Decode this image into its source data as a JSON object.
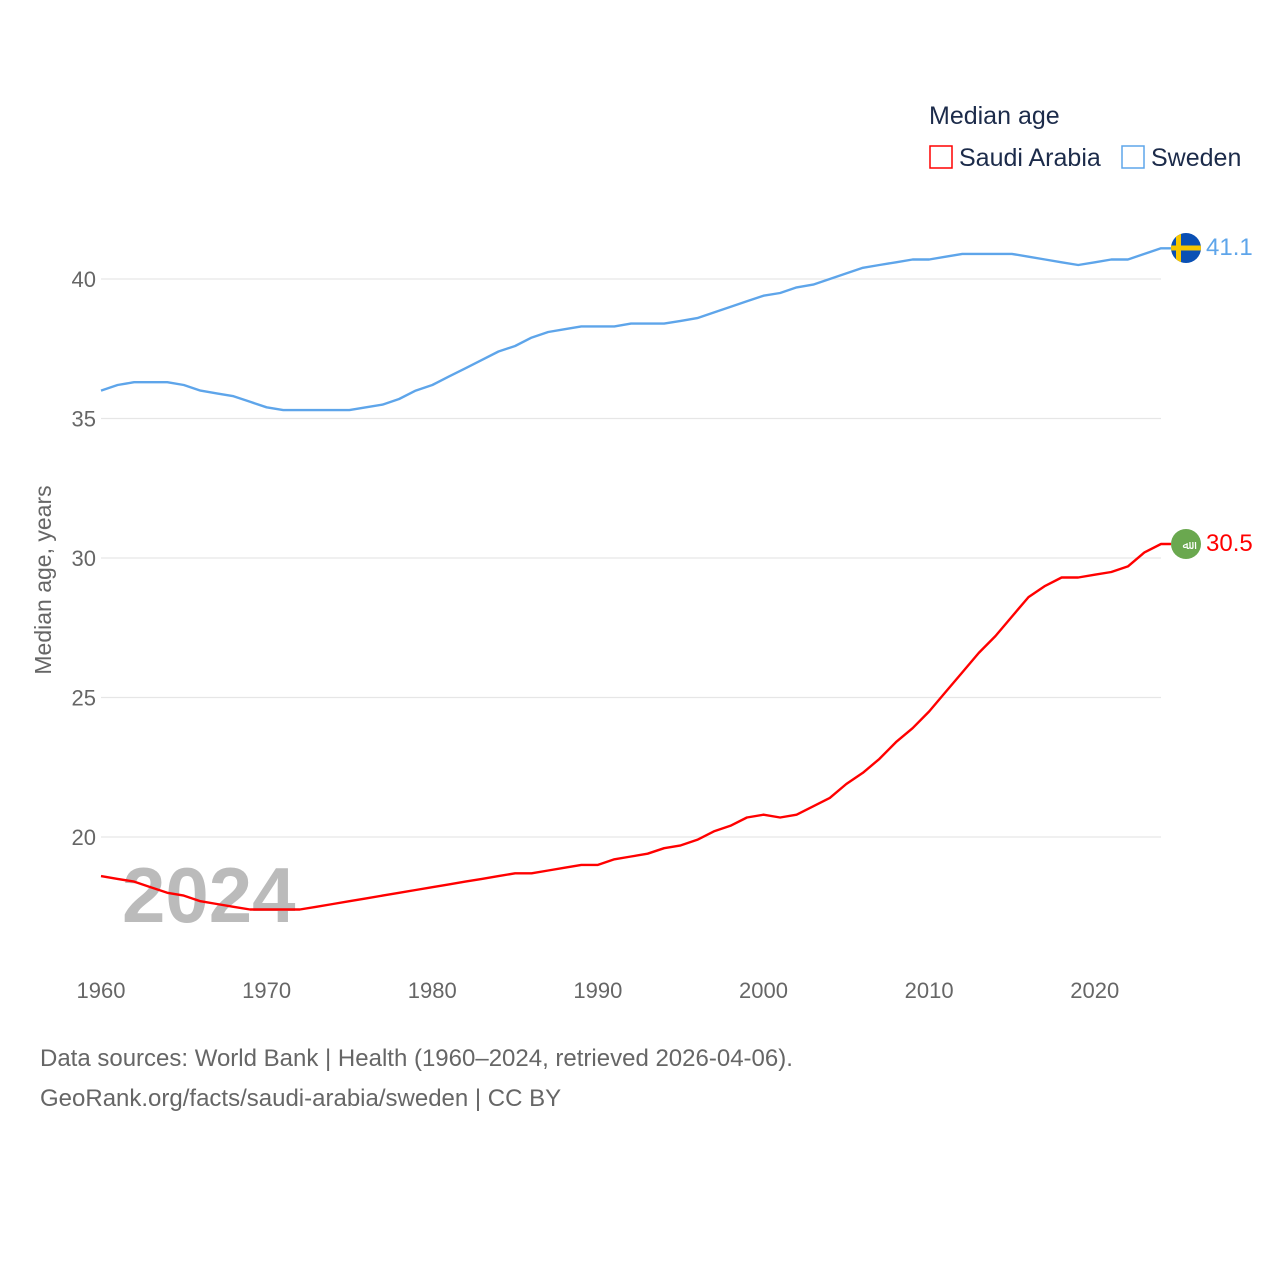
{
  "chart_data": {
    "type": "line",
    "title": "",
    "xlabel": "",
    "ylabel": "Median age, years",
    "legend_title": "Median age",
    "legend_position": "top-right",
    "year_watermark": "2024",
    "xlim": [
      1960,
      2024
    ],
    "ylim": [
      16,
      42
    ],
    "x_ticks": [
      1960,
      1970,
      1980,
      1990,
      2000,
      2010,
      2020
    ],
    "y_ticks": [
      20,
      25,
      30,
      35,
      40
    ],
    "grid": true,
    "x": [
      1960,
      1961,
      1962,
      1963,
      1964,
      1965,
      1966,
      1967,
      1968,
      1969,
      1970,
      1971,
      1972,
      1973,
      1974,
      1975,
      1976,
      1977,
      1978,
      1979,
      1980,
      1981,
      1982,
      1983,
      1984,
      1985,
      1986,
      1987,
      1988,
      1989,
      1990,
      1991,
      1992,
      1993,
      1994,
      1995,
      1996,
      1997,
      1998,
      1999,
      2000,
      2001,
      2002,
      2003,
      2004,
      2005,
      2006,
      2007,
      2008,
      2009,
      2010,
      2011,
      2012,
      2013,
      2014,
      2015,
      2016,
      2017,
      2018,
      2019,
      2020,
      2021,
      2022,
      2023,
      2024
    ],
    "series": [
      {
        "name": "Saudi Arabia",
        "color": "#ff0000",
        "end_label": "30.5",
        "values": [
          18.6,
          18.5,
          18.4,
          18.2,
          18.0,
          17.9,
          17.7,
          17.6,
          17.5,
          17.4,
          17.4,
          17.4,
          17.4,
          17.5,
          17.6,
          17.7,
          17.8,
          17.9,
          18.0,
          18.1,
          18.2,
          18.3,
          18.4,
          18.5,
          18.6,
          18.7,
          18.7,
          18.8,
          18.9,
          19.0,
          19.0,
          19.2,
          19.3,
          19.4,
          19.6,
          19.7,
          19.9,
          20.2,
          20.4,
          20.7,
          20.8,
          20.7,
          20.8,
          21.1,
          21.4,
          21.9,
          22.3,
          22.8,
          23.4,
          23.9,
          24.5,
          25.2,
          25.9,
          26.6,
          27.2,
          27.9,
          28.6,
          29.0,
          29.3,
          29.3,
          29.4,
          29.5,
          29.7,
          30.2,
          30.5
        ]
      },
      {
        "name": "Sweden",
        "color": "#5ea5ea",
        "end_label": "41.1",
        "values": [
          36.0,
          36.2,
          36.3,
          36.3,
          36.3,
          36.2,
          36.0,
          35.9,
          35.8,
          35.6,
          35.4,
          35.3,
          35.3,
          35.3,
          35.3,
          35.3,
          35.4,
          35.5,
          35.7,
          36.0,
          36.2,
          36.5,
          36.8,
          37.1,
          37.4,
          37.6,
          37.9,
          38.1,
          38.2,
          38.3,
          38.3,
          38.3,
          38.4,
          38.4,
          38.4,
          38.5,
          38.6,
          38.8,
          39.0,
          39.2,
          39.4,
          39.5,
          39.7,
          39.8,
          40.0,
          40.2,
          40.4,
          40.5,
          40.6,
          40.7,
          40.7,
          40.8,
          40.9,
          40.9,
          40.9,
          40.9,
          40.8,
          40.7,
          40.6,
          40.5,
          40.6,
          40.7,
          40.7,
          40.9,
          41.1
        ]
      }
    ]
  },
  "footer": {
    "sources": "Data sources: World Bank | Health (1960–2024, retrieved 2026-04-06).",
    "attribution": "GeoRank.org/facts/saudi-arabia/sweden | CC BY"
  }
}
